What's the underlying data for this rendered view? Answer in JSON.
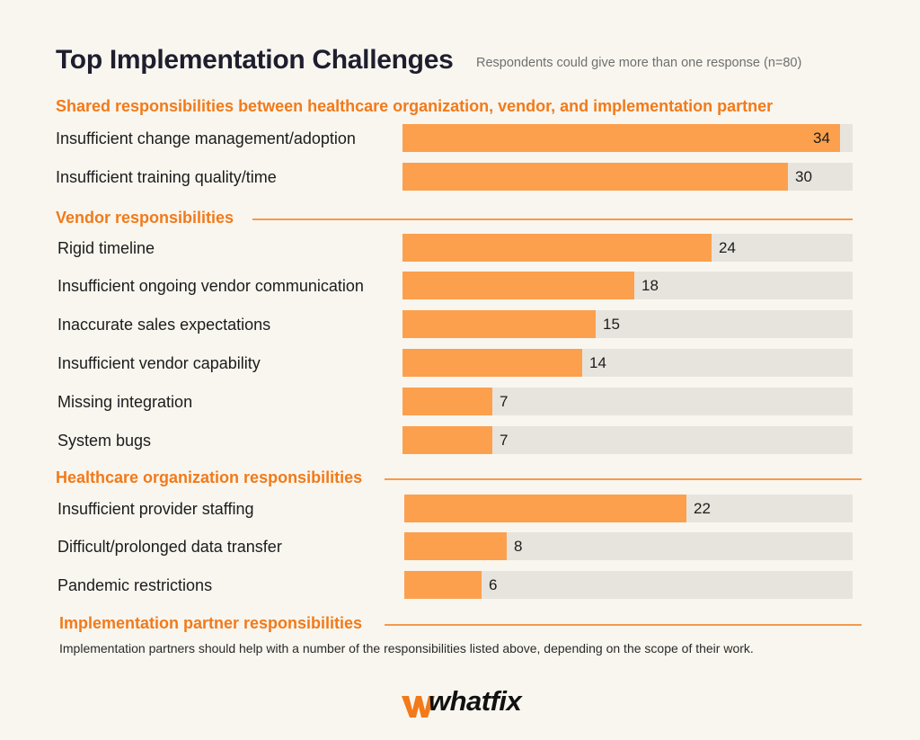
{
  "title": "Top Implementation Challenges",
  "subtitle": "Respondents could give more than one response (n=80)",
  "note": "Implementation partners should help with a number of the responsibilities listed above, depending on the scope of their work.",
  "brand": {
    "name": "whatfix",
    "accent": "#f27a1a",
    "bar_color": "#fca04e",
    "track_color": "#e6e4dd"
  },
  "chart_data": {
    "type": "bar",
    "orientation": "horizontal",
    "xlim": [
      0,
      35
    ],
    "grid": false,
    "groups": [
      {
        "name": "Shared responsibilities between healthcare organization, vendor, and implementation partner",
        "items": [
          {
            "label": "Insufficient change management/adoption",
            "value": 34
          },
          {
            "label": "Insufficient training quality/time",
            "value": 30
          }
        ]
      },
      {
        "name": "Vendor responsibilities",
        "items": [
          {
            "label": "Rigid timeline",
            "value": 24
          },
          {
            "label": "Insufficient ongoing vendor communication",
            "value": 18
          },
          {
            "label": "Inaccurate sales expectations",
            "value": 15
          },
          {
            "label": "Insufficient vendor capability",
            "value": 14
          },
          {
            "label": "Missing integration",
            "value": 7
          },
          {
            "label": "System bugs",
            "value": 7
          }
        ]
      },
      {
        "name": "Healthcare organization responsibilities",
        "items": [
          {
            "label": "Insufficient provider staffing",
            "value": 22
          },
          {
            "label": "Difficult/prolonged data transfer",
            "value": 8
          },
          {
            "label": "Pandemic restrictions",
            "value": 6
          }
        ]
      },
      {
        "name": "Implementation partner responsibilities",
        "items": []
      }
    ]
  }
}
